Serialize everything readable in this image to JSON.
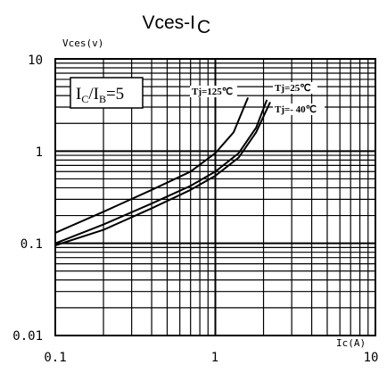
{
  "chart_data": {
    "type": "line",
    "title": "Vces-I",
    "title_subscript": "C",
    "xlabel": "Ic(A)",
    "ylabel": "Vces(v)",
    "x_scale": "log",
    "y_scale": "log",
    "xlim": [
      0.1,
      10
    ],
    "ylim": [
      0.01,
      10
    ],
    "grid": true,
    "x_ticks": [
      "0.1",
      "1",
      "10"
    ],
    "y_ticks": [
      "10",
      "1",
      "0.1",
      "0.01"
    ],
    "condition": {
      "main": "I",
      "sub1": "C",
      "mid": "/I",
      "sub2": "B",
      "tail": "=5"
    },
    "series": [
      {
        "name": "Tj=125℃",
        "x": [
          0.1,
          0.2,
          0.4,
          0.7,
          1.0,
          1.3,
          1.6
        ],
        "y": [
          0.13,
          0.22,
          0.38,
          0.6,
          0.95,
          1.6,
          3.8
        ]
      },
      {
        "name": "Tj=25℃",
        "x": [
          0.1,
          0.2,
          0.4,
          0.7,
          1.0,
          1.4,
          1.8,
          2.1
        ],
        "y": [
          0.1,
          0.16,
          0.27,
          0.42,
          0.6,
          0.95,
          1.8,
          3.6
        ]
      },
      {
        "name": "Tj=- 40℃",
        "x": [
          0.1,
          0.2,
          0.4,
          0.7,
          1.0,
          1.4,
          1.8,
          2.2
        ],
        "y": [
          0.095,
          0.14,
          0.24,
          0.38,
          0.54,
          0.85,
          1.6,
          3.4
        ]
      }
    ]
  }
}
